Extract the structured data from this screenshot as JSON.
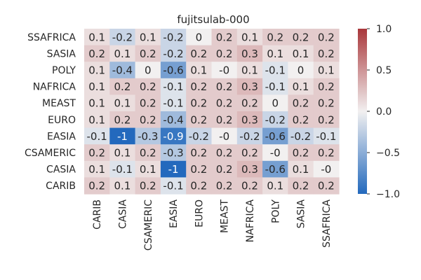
{
  "chart_data": {
    "type": "heatmap",
    "title": "fujitsulab-000",
    "rows": [
      "SSAFRICA",
      "SASIA",
      "POLY",
      "NAFRICA",
      "MEAST",
      "EURO",
      "EASIA",
      "CSAMERIC",
      "CASIA",
      "CARIB"
    ],
    "columns": [
      "CARIB",
      "CASIA",
      "CSAMERIC",
      "EASIA",
      "EURO",
      "MEAST",
      "NAFRICA",
      "POLY",
      "SASIA",
      "SSAFRICA"
    ],
    "values": [
      [
        0.1,
        -0.2,
        0.1,
        -0.2,
        0.0,
        0.2,
        0.1,
        0.2,
        0.2,
        0.2
      ],
      [
        0.2,
        0.1,
        0.2,
        -0.2,
        0.2,
        0.2,
        0.3,
        0.1,
        0.1,
        0.2
      ],
      [
        0.1,
        -0.4,
        0.0,
        -0.6,
        0.1,
        -0.0,
        0.1,
        -0.1,
        0.0,
        0.1
      ],
      [
        0.1,
        0.2,
        0.2,
        -0.1,
        0.2,
        0.2,
        0.3,
        -0.1,
        0.1,
        0.2
      ],
      [
        0.1,
        0.1,
        0.2,
        -0.1,
        0.2,
        0.2,
        0.2,
        0.0,
        0.2,
        0.2
      ],
      [
        0.1,
        0.2,
        0.2,
        -0.4,
        0.2,
        0.2,
        0.3,
        -0.2,
        0.2,
        0.2
      ],
      [
        -0.1,
        -1.0,
        -0.3,
        -0.9,
        -0.2,
        -0.0,
        -0.2,
        -0.6,
        -0.2,
        -0.1
      ],
      [
        0.2,
        0.1,
        0.2,
        -0.3,
        0.2,
        0.2,
        0.2,
        -0.0,
        0.2,
        0.2
      ],
      [
        0.1,
        -0.1,
        0.1,
        -1.0,
        0.2,
        0.2,
        0.3,
        -0.6,
        0.1,
        -0.0
      ],
      [
        0.2,
        0.1,
        0.2,
        -0.1,
        0.2,
        0.2,
        0.2,
        0.1,
        0.2,
        0.2
      ]
    ],
    "cell_labels": [
      [
        "0.1",
        "-0.2",
        "0.1",
        "-0.2",
        "0",
        "0.2",
        "0.1",
        "0.2",
        "0.2",
        "0.2"
      ],
      [
        "0.2",
        "0.1",
        "0.2",
        "-0.2",
        "0.2",
        "0.2",
        "0.3",
        "0.1",
        "0.1",
        "0.2"
      ],
      [
        "0.1",
        "-0.4",
        "0",
        "-0.6",
        "0.1",
        "-0",
        "0.1",
        "-0.1",
        "0",
        "0.1"
      ],
      [
        "0.1",
        "0.2",
        "0.2",
        "-0.1",
        "0.2",
        "0.2",
        "0.3",
        "-0.1",
        "0.1",
        "0.2"
      ],
      [
        "0.1",
        "0.1",
        "0.2",
        "-0.1",
        "0.2",
        "0.2",
        "0.2",
        "0",
        "0.2",
        "0.2"
      ],
      [
        "0.1",
        "0.2",
        "0.2",
        "-0.4",
        "0.2",
        "0.2",
        "0.3",
        "-0.2",
        "0.2",
        "0.2"
      ],
      [
        "-0.1",
        "-1",
        "-0.3",
        "-0.9",
        "-0.2",
        "-0",
        "-0.2",
        "-0.6",
        "-0.2",
        "-0.1"
      ],
      [
        "0.2",
        "0.1",
        "0.2",
        "-0.3",
        "0.2",
        "0.2",
        "0.2",
        "-0",
        "0.2",
        "0.2"
      ],
      [
        "0.1",
        "-0.1",
        "0.1",
        "-1",
        "0.2",
        "0.2",
        "0.3",
        "-0.6",
        "0.1",
        "-0"
      ],
      [
        "0.2",
        "0.1",
        "0.2",
        "-0.1",
        "0.2",
        "0.2",
        "0.2",
        "0.1",
        "0.2",
        "0.2"
      ]
    ],
    "colormap": "vlag",
    "color_range": [
      -1.0,
      1.0
    ],
    "colorbar_ticks": [
      1.0,
      0.5,
      0.0,
      -0.5,
      -1.0
    ],
    "colorbar_tick_labels": [
      "1.0",
      "0.5",
      "0.0",
      "−0.5",
      "−1.0"
    ],
    "colors": {
      "negative_end": "#2369bd",
      "center": "#f2f0f0",
      "positive_end": "#a9373b"
    }
  }
}
